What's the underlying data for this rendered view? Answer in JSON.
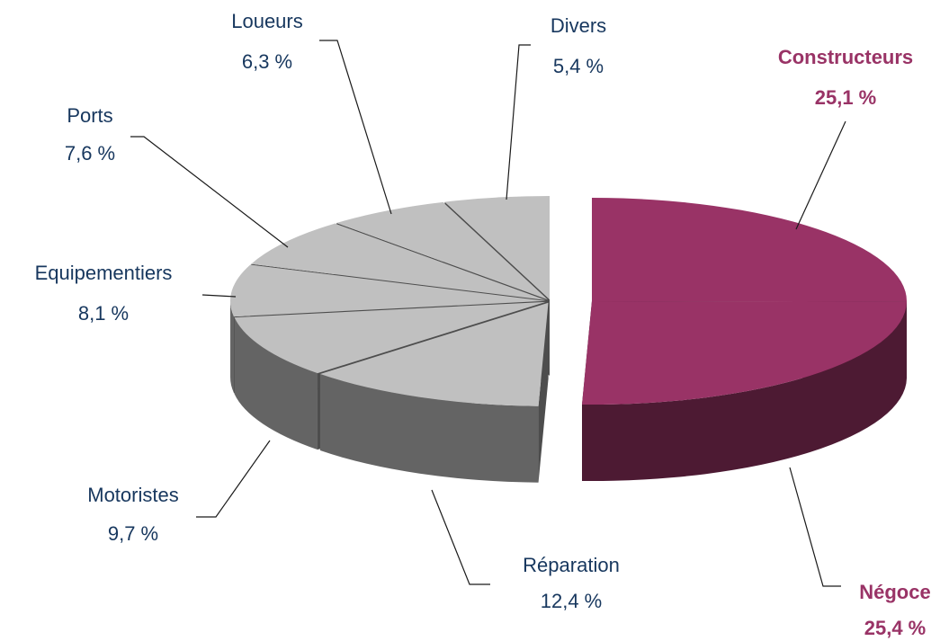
{
  "chart_data": {
    "type": "pie",
    "categories": [
      "Constructeurs",
      "Négoce",
      "Réparation",
      "Motoristes",
      "Equipementiers",
      "Ports",
      "Loueurs",
      "Divers"
    ],
    "values": [
      25.1,
      25.4,
      12.4,
      9.7,
      8.1,
      7.6,
      6.3,
      5.4
    ],
    "value_labels": [
      "25,1 %",
      "25,4 %",
      "12,4 %",
      "9,7 %",
      "8,1 %",
      "7,6 %",
      "6,3 %",
      "5,4 %"
    ],
    "colors": [
      "#993366",
      "#993366",
      "#c0c0c0",
      "#c0c0c0",
      "#c0c0c0",
      "#c0c0c0",
      "#c0c0c0",
      "#c0c0c0"
    ],
    "label_colors": [
      "#993366",
      "#993366",
      "#17375e",
      "#17375e",
      "#17375e",
      "#17375e",
      "#17375e",
      "#17375e"
    ]
  }
}
